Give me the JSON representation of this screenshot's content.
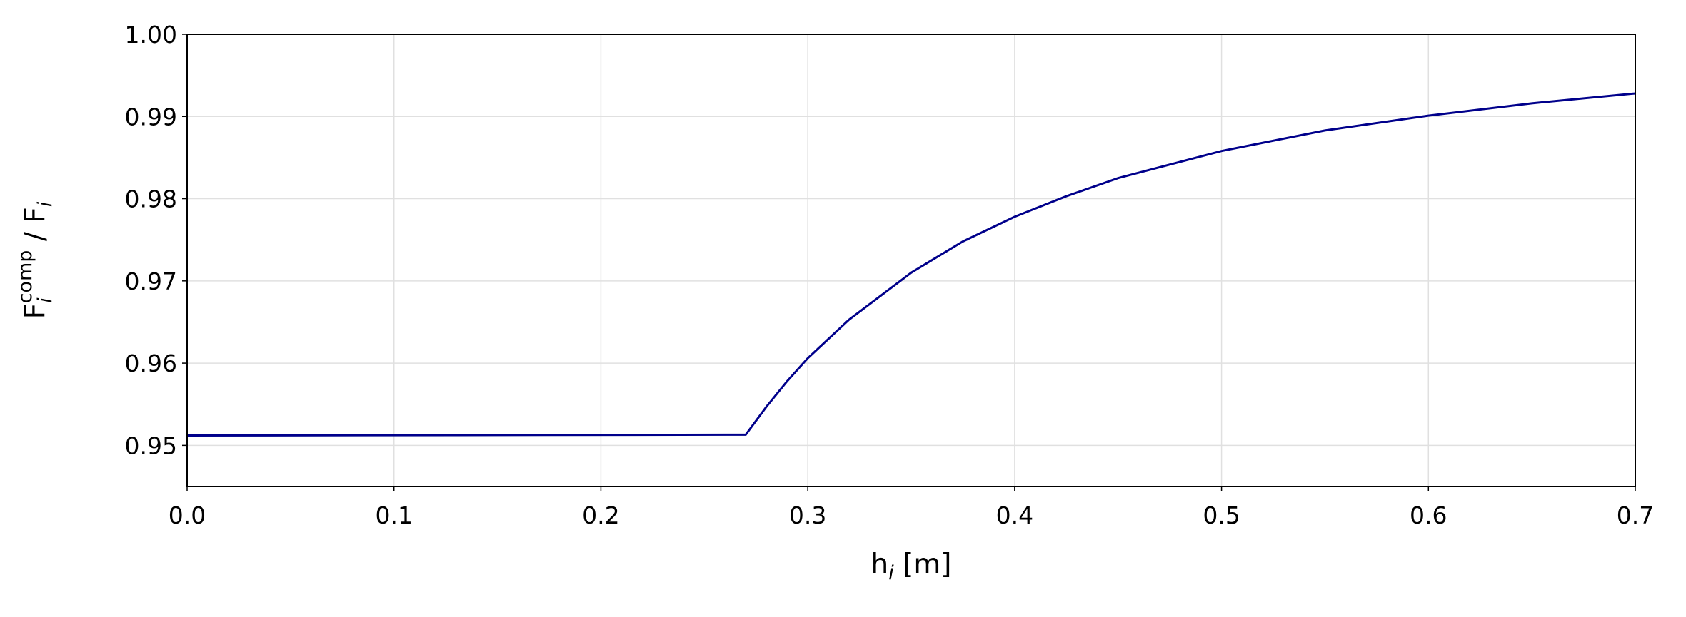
{
  "chart_data": {
    "type": "line",
    "xlabel": {
      "base": "h",
      "sub": "i",
      "rest": " [m]"
    },
    "ylabel": {
      "base": "F",
      "sub": "i",
      "sup": "comp",
      "rest": " / F",
      "sub2": "i"
    },
    "x": [
      0,
      0.27,
      0.28,
      0.29,
      0.3,
      0.32,
      0.35,
      0.375,
      0.4,
      0.425,
      0.45,
      0.5,
      0.55,
      0.6,
      0.65,
      0.7
    ],
    "series": [
      {
        "color": "#00008b",
        "values": [
          0.9512,
          0.9513,
          0.9547,
          0.9578,
          0.9606,
          0.9653,
          0.971,
          0.9748,
          0.9778,
          0.9803,
          0.9825,
          0.9858,
          0.9883,
          0.9901,
          0.9916,
          0.9928
        ]
      }
    ],
    "xlim": [
      0,
      0.7
    ],
    "ylim": [
      0.945,
      1.0
    ],
    "xticks": [
      {
        "value": 0,
        "label": "0.0"
      },
      0.1,
      0.2,
      0.3,
      0.4,
      0.5,
      0.6,
      0.7
    ],
    "yticks": [
      0.95,
      0.96,
      0.97,
      0.98,
      0.99,
      {
        "value": 1.0,
        "label": "1.00"
      }
    ],
    "grid": true
  }
}
